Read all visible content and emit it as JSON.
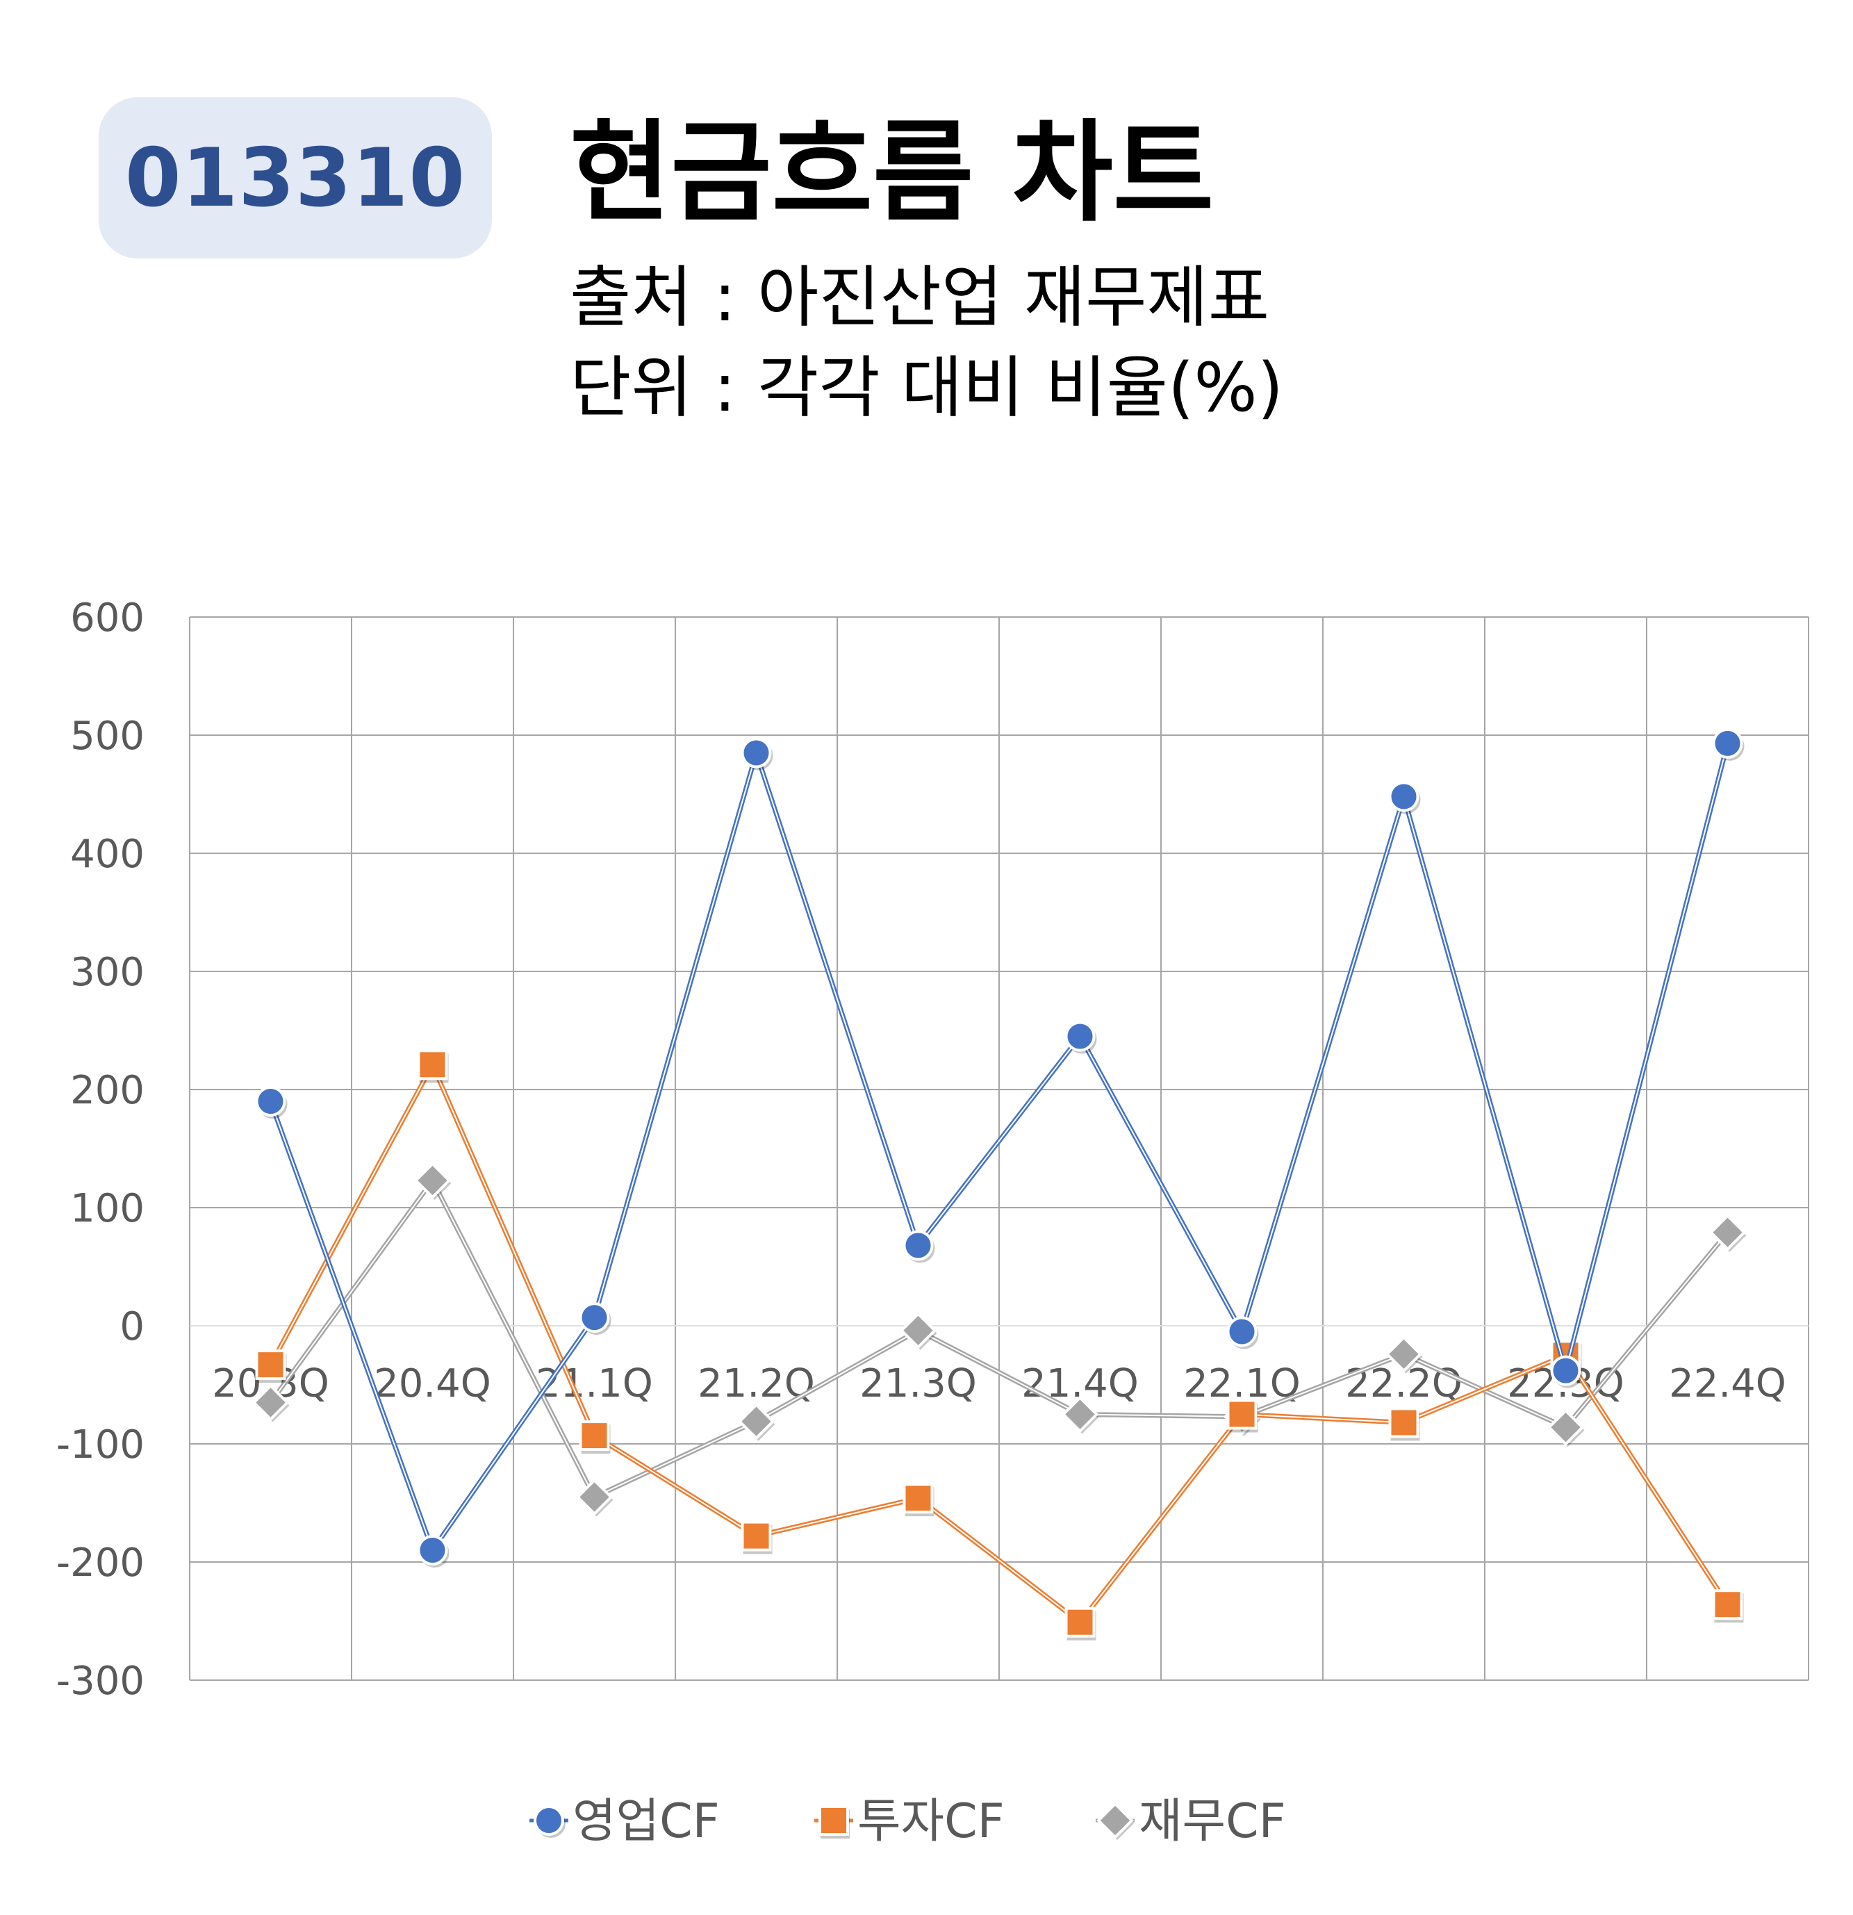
{
  "header": {
    "code": "013310",
    "title": "현금흐름 차트",
    "source": "출처 : 아진산업 재무제표",
    "unit": "단위 : 각각 대비 비율(%)"
  },
  "colors": {
    "op": "#4472c4",
    "inv": "#ed7d31",
    "fin": "#a5a5a5",
    "grid": "#a6a6a6",
    "badge_bg": "#e3e9f5",
    "badge_text": "#2d4f8f"
  },
  "chart_data": {
    "type": "line",
    "title": "",
    "xlabel": "",
    "ylabel": "",
    "categories": [
      "20.3Q",
      "20.4Q",
      "21.1Q",
      "21.2Q",
      "21.3Q",
      "21.4Q",
      "22.1Q",
      "22.2Q",
      "22.3Q",
      "22.4Q"
    ],
    "ylim": [
      -300,
      600
    ],
    "yticks": [
      600,
      500,
      400,
      300,
      200,
      100,
      0,
      -100,
      -200,
      -300
    ],
    "grid": true,
    "legend_position": "bottom",
    "series": [
      {
        "name": "영업CF",
        "marker": "circle",
        "color": "#4472c4",
        "values": [
          190,
          -190,
          7,
          485,
          68,
          245,
          -5,
          448,
          -38,
          493
        ]
      },
      {
        "name": "투자CF",
        "marker": "square",
        "color": "#ed7d31",
        "values": [
          -33,
          221,
          -93,
          -178,
          -146,
          -251,
          -75,
          -82,
          -25,
          -236
        ]
      },
      {
        "name": "재무CF",
        "marker": "diamond",
        "color": "#a5a5a5",
        "values": [
          -65,
          123,
          -145,
          -81,
          -4,
          -75,
          -77,
          -24,
          -86,
          79
        ]
      }
    ]
  }
}
